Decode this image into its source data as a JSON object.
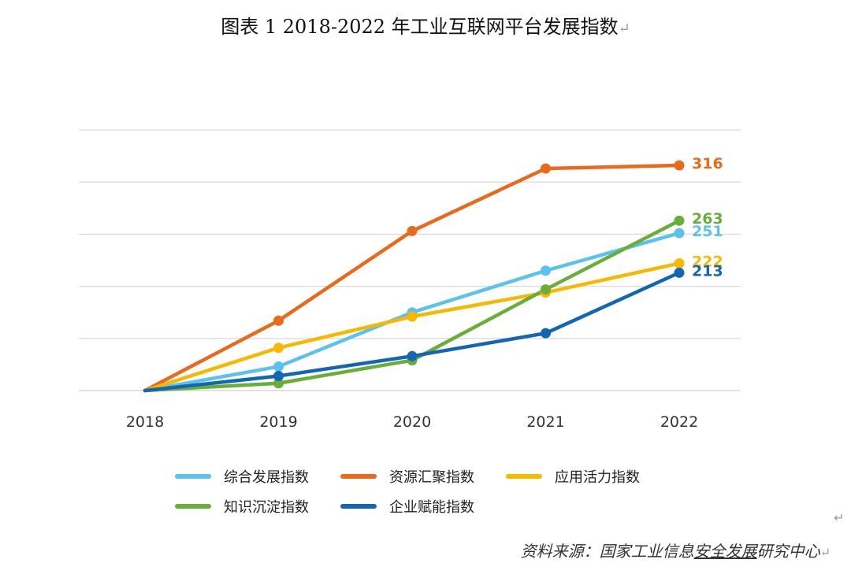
{
  "title": "图表 1  2018-2022 年工业互联网平台发展指数",
  "source": {
    "prefix": "资料来源：国家工业信息",
    "underlined": "安全发展",
    "suffix": "研究中心"
  },
  "chart_data": {
    "type": "line",
    "title": "图表 1  2018-2022 年工业互联网平台发展指数",
    "x": [
      "2018",
      "2019",
      "2020",
      "2021",
      "2022"
    ],
    "ylim": [
      100,
      350
    ],
    "grid": true,
    "legend_position": "bottom",
    "series": [
      {
        "name": "综合发展指数",
        "color": "#5BC2EE",
        "values": [
          100,
          123,
          175,
          215,
          251
        ],
        "end_label": "251"
      },
      {
        "name": "资源汇聚指数",
        "color": "#E86A1A",
        "values": [
          100,
          167,
          253,
          313,
          316
        ],
        "end_label": "316"
      },
      {
        "name": "应用活力指数",
        "color": "#F6B800",
        "values": [
          100,
          141,
          171,
          194,
          222
        ],
        "end_label": "222"
      },
      {
        "name": "知识沉淀指数",
        "color": "#6AAE3A",
        "values": [
          100,
          107,
          129,
          197,
          263
        ],
        "end_label": "263"
      },
      {
        "name": "企业赋能指数",
        "color": "#1366B1",
        "values": [
          100,
          114,
          133,
          155,
          213
        ],
        "end_label": "213"
      }
    ]
  }
}
